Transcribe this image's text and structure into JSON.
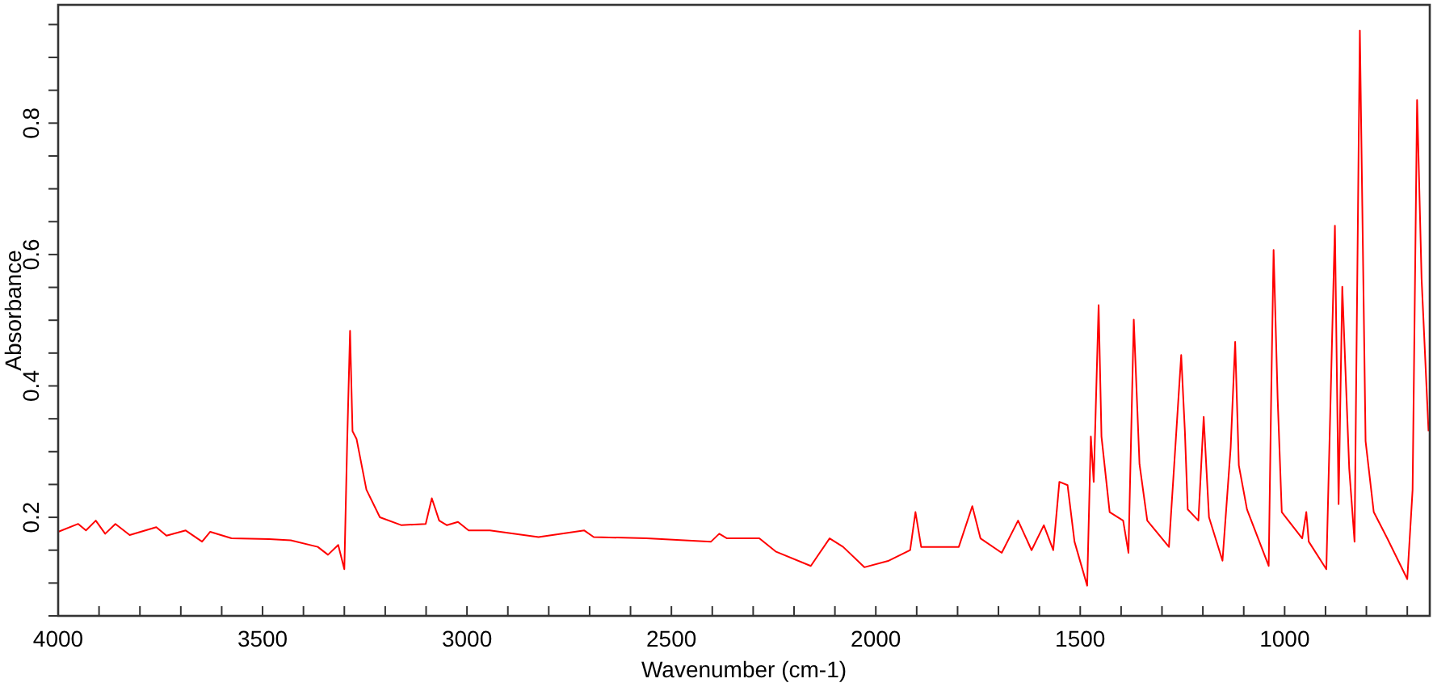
{
  "chart_data": {
    "type": "line",
    "xlabel": "Wavenumber (cm-1)",
    "ylabel": "Absorbance",
    "xlim": [
      4000,
      645
    ],
    "ylim": [
      0.05,
      0.98
    ],
    "xticks": [
      4000,
      {
        "value": 3900,
        "label": null
      },
      {
        "value": 3800,
        "label": null
      },
      {
        "value": 3700,
        "label": null
      },
      {
        "value": 3600,
        "label": null
      },
      3500,
      {
        "value": 3400,
        "label": null
      },
      {
        "value": 3300,
        "label": null
      },
      {
        "value": 3200,
        "label": null
      },
      {
        "value": 3100,
        "label": null
      },
      3000,
      {
        "value": 2900,
        "label": null
      },
      {
        "value": 2800,
        "label": null
      },
      {
        "value": 2700,
        "label": null
      },
      {
        "value": 2600,
        "label": null
      },
      2500,
      {
        "value": 2400,
        "label": null
      },
      {
        "value": 2300,
        "label": null
      },
      {
        "value": 2200,
        "label": null
      },
      {
        "value": 2100,
        "label": null
      },
      2000,
      {
        "value": 1900,
        "label": null
      },
      {
        "value": 1800,
        "label": null
      },
      {
        "value": 1700,
        "label": null
      },
      {
        "value": 1600,
        "label": null
      },
      1500,
      {
        "value": 1400,
        "label": null
      },
      {
        "value": 1300,
        "label": null
      },
      {
        "value": 1200,
        "label": null
      },
      {
        "value": 1100,
        "label": null
      },
      1000,
      {
        "value": 900,
        "label": null
      },
      {
        "value": 800,
        "label": null
      },
      {
        "value": 700,
        "label": null
      }
    ],
    "yticks": [
      {
        "value": 0.05,
        "label": null
      },
      {
        "value": 0.1,
        "label": null
      },
      {
        "value": 0.15,
        "label": null
      },
      0.2,
      {
        "value": 0.25,
        "label": null
      },
      {
        "value": 0.3,
        "label": null
      },
      {
        "value": 0.35,
        "label": null
      },
      0.4,
      {
        "value": 0.45,
        "label": null
      },
      {
        "value": 0.5,
        "label": null
      },
      {
        "value": 0.55,
        "label": null
      },
      0.6,
      {
        "value": 0.65,
        "label": null
      },
      {
        "value": 0.7,
        "label": null
      },
      {
        "value": 0.75,
        "label": null
      },
      0.8,
      {
        "value": 0.85,
        "label": null
      },
      {
        "value": 0.9,
        "label": null
      },
      {
        "value": 0.95,
        "label": null
      }
    ],
    "grid": false,
    "marker": "none",
    "line_style": "solid",
    "series": [
      {
        "color": "#ff0000",
        "x": [
          4000,
          3951,
          3932,
          3908,
          3885,
          3860,
          3825,
          3760,
          3735,
          3688,
          3648,
          3628,
          3576,
          3484,
          3431,
          3365,
          3340,
          3315,
          3300,
          3293,
          3286,
          3280,
          3270,
          3246,
          3213,
          3160,
          3101,
          3086,
          3068,
          3049,
          3022,
          2996,
          2944,
          2825,
          2713,
          2690,
          2561,
          2403,
          2383,
          2364,
          2285,
          2245,
          2159,
          2113,
          2080,
          2028,
          1968,
          1916,
          1903,
          1889,
          1797,
          1764,
          1744,
          1692,
          1652,
          1619,
          1589,
          1566,
          1551,
          1531,
          1514,
          1483,
          1474,
          1467,
          1455,
          1448,
          1428,
          1395,
          1382,
          1369,
          1355,
          1336,
          1283,
          1270,
          1253,
          1244,
          1237,
          1211,
          1198,
          1185,
          1152,
          1132,
          1121,
          1112,
          1101,
          1092,
          1039,
          1033,
          1027,
          1017,
          1007,
          957,
          947,
          941,
          898,
          877,
          868,
          859,
          842,
          829,
          816,
          802,
          782,
          749,
          700,
          687,
          676,
          665,
          648
        ],
        "values": [
          0.178,
          0.19,
          0.18,
          0.195,
          0.175,
          0.19,
          0.173,
          0.185,
          0.172,
          0.18,
          0.163,
          0.178,
          0.168,
          0.167,
          0.165,
          0.155,
          0.143,
          0.158,
          0.121,
          0.316,
          0.484,
          0.331,
          0.319,
          0.242,
          0.2,
          0.188,
          0.19,
          0.229,
          0.195,
          0.188,
          0.193,
          0.18,
          0.18,
          0.17,
          0.18,
          0.17,
          0.168,
          0.163,
          0.175,
          0.168,
          0.168,
          0.148,
          0.126,
          0.168,
          0.155,
          0.124,
          0.134,
          0.15,
          0.208,
          0.155,
          0.155,
          0.217,
          0.168,
          0.146,
          0.195,
          0.15,
          0.188,
          0.15,
          0.254,
          0.249,
          0.163,
          0.096,
          0.323,
          0.254,
          0.523,
          0.323,
          0.208,
          0.195,
          0.146,
          0.501,
          0.281,
          0.195,
          0.155,
          0.281,
          0.447,
          0.331,
          0.212,
          0.195,
          0.353,
          0.2,
          0.134,
          0.306,
          0.467,
          0.279,
          0.242,
          0.212,
          0.126,
          0.38,
          0.607,
          0.38,
          0.208,
          0.168,
          0.208,
          0.163,
          0.121,
          0.644,
          0.22,
          0.551,
          0.274,
          0.163,
          0.941,
          0.316,
          0.208,
          0.168,
          0.106,
          0.242,
          0.835,
          0.563,
          0.331
        ]
      }
    ]
  }
}
